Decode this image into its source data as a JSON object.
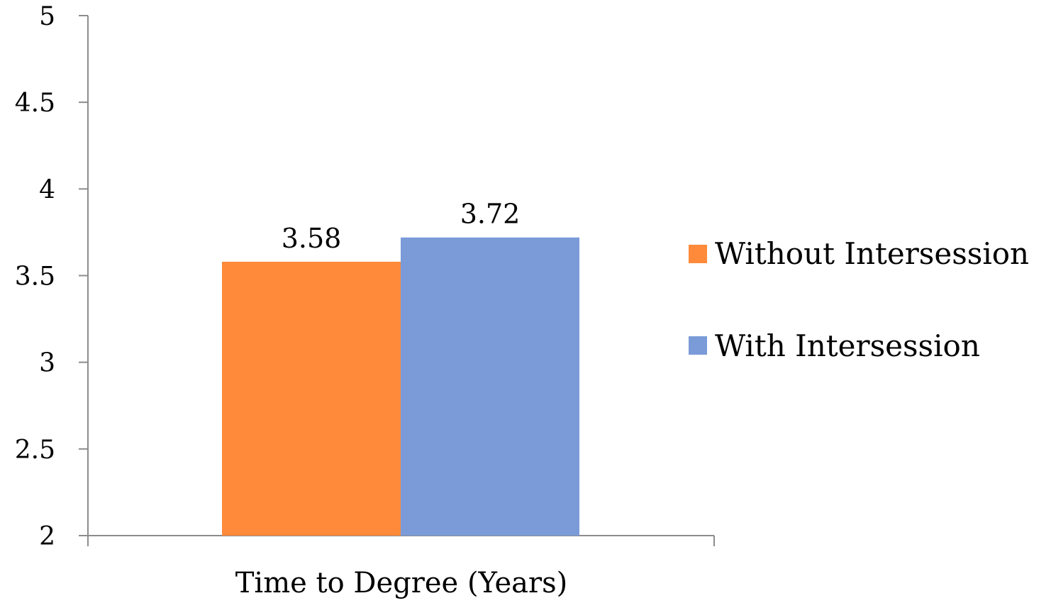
{
  "chart_data": {
    "type": "bar",
    "categories": [
      "Time to Degree (Years)"
    ],
    "series": [
      {
        "name": "Without Intersession",
        "values": [
          3.58
        ],
        "color": "#FF8A3A"
      },
      {
        "name": "With Intersession",
        "values": [
          3.72
        ],
        "color": "#7A9BD8"
      }
    ],
    "data_labels": [
      "3.58",
      "3.72"
    ],
    "ylim": [
      2,
      5
    ],
    "yticks": [
      2,
      2.5,
      3,
      3.5,
      4,
      4.5,
      5
    ],
    "ytick_labels": [
      "2",
      "2.5",
      "3",
      "3.5",
      "4",
      "4.5",
      "5"
    ],
    "grid": false,
    "legend_position": "right",
    "title": "",
    "xlabel": "",
    "ylabel": ""
  }
}
